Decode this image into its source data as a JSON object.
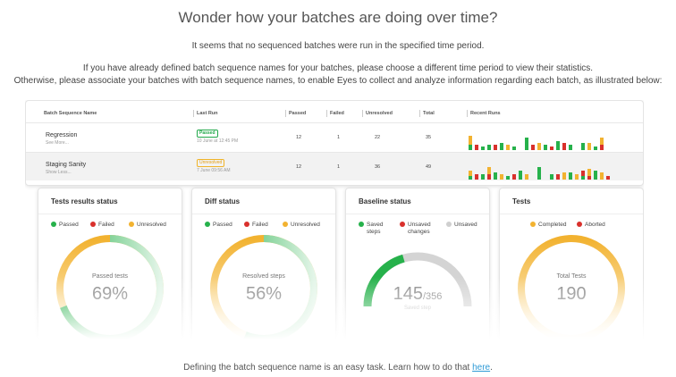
{
  "header": {
    "title": "Wonder how your batches are doing over time?",
    "line1": "It seems that no sequenced batches were run in the specified time period.",
    "line2": "If you have already defined batch sequence names for your batches, please choose a different time period to view their statistics.",
    "line3": "Otherwise, please associate your batches with batch sequence names, to enable Eyes to collect and analyze information regarding each batch, as illustrated below:"
  },
  "colors": {
    "passed": "#26b14b",
    "failed": "#d9302c",
    "unresolved": "#f2b230",
    "saved": "#26b14b",
    "unsaved_changes": "#d9302c",
    "unsaved": "#cfcfcf",
    "completed": "#f2b230",
    "aborted": "#d9302c",
    "link": "#2e9ad6"
  },
  "table": {
    "headers": [
      "Batch Sequence Name",
      "Last Run",
      "Passed",
      "Failed",
      "Unresolved",
      "Total",
      "Recent Runs"
    ],
    "rows": [
      {
        "name": "Regression",
        "sub": "See More...",
        "status": "Passed",
        "date": "10 June at 12:45 PM",
        "passed": "12",
        "failed": "1",
        "unresolved": "22",
        "total": "35"
      },
      {
        "name": "Staging Sanity",
        "sub": "Show Less...",
        "status": "Unresolved",
        "date": "7 June 09:56 AM",
        "passed": "12",
        "failed": "1",
        "unresolved": "36",
        "total": "49"
      }
    ]
  },
  "panels": {
    "tests_results": {
      "title": "Tests results status",
      "legend": [
        "Passed",
        "Failed",
        "Unresolved"
      ],
      "label": "Passed tests",
      "value": "69%",
      "fraction": 0.69
    },
    "diff": {
      "title": "Diff status",
      "legend": [
        "Passed",
        "Failed",
        "Unresolved"
      ],
      "label": "Resolved steps",
      "value": "56%",
      "fraction": 0.56
    },
    "baseline": {
      "title": "Baseline status",
      "legend": [
        "Saved",
        "Unsaved",
        "Unsaved"
      ],
      "legend_sub": [
        "steps",
        "changes"
      ],
      "value": "145",
      "total": "/356",
      "label": "Saved step",
      "fraction": 0.41
    },
    "tests": {
      "title": "Tests",
      "legend": [
        "Completed",
        "Aborted"
      ],
      "label": "Total Tests",
      "value": "190",
      "fraction": 1.0
    }
  },
  "footer": {
    "text": "Defining the batch sequence name is an easy task. Learn how to do that ",
    "link": "here",
    "end": "."
  }
}
